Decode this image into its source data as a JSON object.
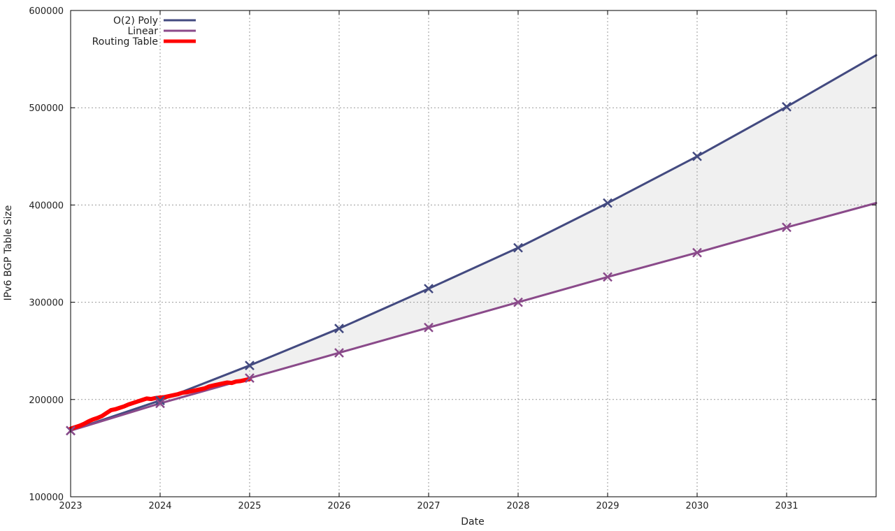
{
  "chart_data": {
    "type": "line",
    "xlabel": "Date",
    "ylabel": "IPv6 BGP Table Size",
    "xlim": [
      2023.0,
      2032.0
    ],
    "ylim": [
      100000,
      600000
    ],
    "x_ticks": [
      2023,
      2024,
      2025,
      2026,
      2027,
      2028,
      2029,
      2030,
      2031
    ],
    "x_tick_labels": [
      "2023",
      "2024",
      "2025",
      "2026",
      "2027",
      "2028",
      "2029",
      "2030",
      "2031"
    ],
    "y_ticks": [
      100000,
      200000,
      300000,
      400000,
      500000,
      600000
    ],
    "y_tick_labels": [
      "100000",
      "200000",
      "300000",
      "400000",
      "500000",
      "600000"
    ],
    "grid": true,
    "legend_position": "top-left",
    "shaded_region": {
      "between": [
        "O(2) Poly",
        "Linear"
      ],
      "color": "#f0f0f0"
    },
    "series": [
      {
        "name": "O(2) Poly",
        "color": "#434a80",
        "style": "line",
        "x": [
          2023,
          2024,
          2025,
          2026,
          2027,
          2028,
          2029,
          2030,
          2031,
          2032
        ],
        "y": [
          168000,
          199000,
          235000,
          273000,
          314000,
          356000,
          402000,
          450000,
          501000,
          554000
        ],
        "marker_x": [
          2023,
          2024,
          2025,
          2026,
          2027,
          2028,
          2029,
          2030,
          2031
        ],
        "marker_y": [
          168000,
          199000,
          235000,
          273000,
          314000,
          356000,
          402000,
          450000,
          501000
        ]
      },
      {
        "name": "Linear",
        "color": "#8a4a8a",
        "style": "line",
        "x": [
          2023,
          2024,
          2025,
          2026,
          2027,
          2028,
          2029,
          2030,
          2031,
          2032
        ],
        "y": [
          168000,
          196000,
          222000,
          248000,
          274000,
          300000,
          326000,
          351000,
          377000,
          402000
        ],
        "marker_x": [
          2023,
          2024,
          2025,
          2026,
          2027,
          2028,
          2029,
          2030,
          2031
        ],
        "marker_y": [
          168000,
          196000,
          222000,
          248000,
          274000,
          300000,
          326000,
          351000,
          377000
        ]
      },
      {
        "name": "Routing Table",
        "color": "#ff0000",
        "style": "thick-line",
        "x": [
          2023.0,
          2023.05,
          2023.1,
          2023.15,
          2023.2,
          2023.25,
          2023.3,
          2023.35,
          2023.4,
          2023.45,
          2023.5,
          2023.55,
          2023.6,
          2023.65,
          2023.7,
          2023.75,
          2023.8,
          2023.85,
          2023.9,
          2023.95,
          2024.0,
          2024.05,
          2024.1,
          2024.15,
          2024.2,
          2024.25,
          2024.3,
          2024.35,
          2024.4,
          2024.45,
          2024.5,
          2024.55,
          2024.6,
          2024.65,
          2024.7,
          2024.75,
          2024.8,
          2024.85,
          2024.9,
          2024.95,
          2025.0
        ],
        "y": [
          170000,
          171500,
          173000,
          175000,
          177500,
          179500,
          181000,
          183000,
          186000,
          189000,
          190000,
          191500,
          193000,
          195000,
          196500,
          198000,
          199500,
          201000,
          200500,
          201500,
          202000,
          202500,
          203500,
          204500,
          205500,
          207000,
          207500,
          208500,
          209500,
          210500,
          211500,
          213500,
          214500,
          215500,
          216500,
          217500,
          217000,
          218500,
          219000,
          220000,
          221000
        ]
      }
    ]
  }
}
